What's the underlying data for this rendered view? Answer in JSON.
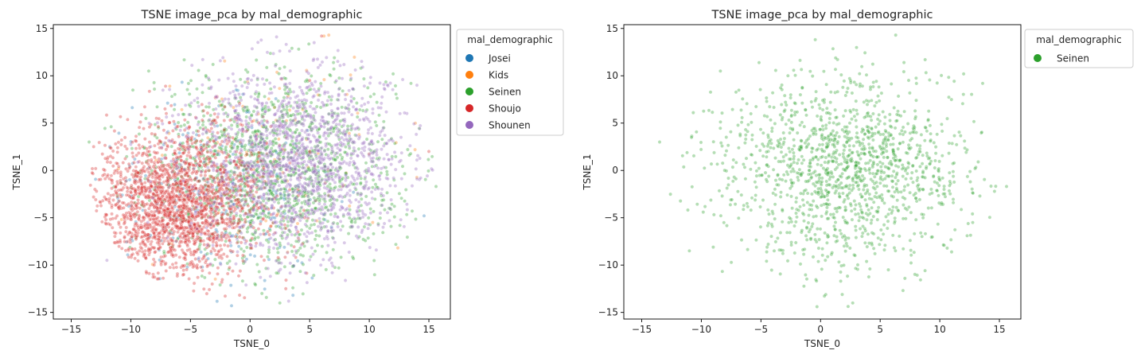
{
  "chart_data": [
    {
      "type": "scatter",
      "title": "TSNE image_pca by mal_demographic",
      "xlabel": "TSNE_0",
      "ylabel": "TSNE_1",
      "xlim": [
        -16.5,
        16.8
      ],
      "ylim": [
        -15.7,
        15.4
      ],
      "xticks": [
        -15,
        -10,
        -5,
        0,
        5,
        10,
        15
      ],
      "yticks": [
        -15,
        -10,
        -5,
        0,
        5,
        10,
        15
      ],
      "grid": false,
      "legend": {
        "title": "mal_demographic",
        "placement": "outside-upper-right",
        "entries": [
          {
            "name": "Josei",
            "color": "#1f77b4"
          },
          {
            "name": "Kids",
            "color": "#ff7f0e"
          },
          {
            "name": "Seinen",
            "color": "#2ca02c"
          },
          {
            "name": "Shoujo",
            "color": "#d62728"
          },
          {
            "name": "Shounen",
            "color": "#9467bd"
          }
        ]
      },
      "point_alpha": 0.35,
      "series": [
        {
          "name": "Josei",
          "color": "#1f77b4",
          "count": 260,
          "center": [
            -3.0,
            -3.0
          ],
          "spread": [
            5.0,
            4.5
          ],
          "points": [
            [
              14.6,
              -4.8
            ],
            [
              -5.5,
              -7.0
            ],
            [
              -4.0,
              -10.2
            ],
            [
              -6.2,
              -7.5
            ]
          ]
        },
        {
          "name": "Kids",
          "color": "#ff7f0e",
          "count": 120,
          "center": [
            2.0,
            1.5
          ],
          "spread": [
            5.5,
            5.0
          ],
          "points": [
            [
              6.2,
              14.2
            ],
            [
              6.6,
              14.3
            ]
          ]
        },
        {
          "name": "Seinen",
          "color": "#2ca02c",
          "count": 1400,
          "center": [
            2.0,
            0.0
          ],
          "spread": [
            5.2,
            5.0
          ],
          "points": [
            [
              15.6,
              -1.7
            ],
            [
              -13.5,
              3.0
            ],
            [
              12.0,
              10.2
            ],
            [
              7.0,
              11.4
            ],
            [
              1.0,
              -13.0
            ],
            [
              2.5,
              -14.0
            ],
            [
              13.5,
              9.2
            ],
            [
              -8.5,
              10.5
            ]
          ]
        },
        {
          "name": "Shoujo",
          "color": "#d62728",
          "count": 2000,
          "center": [
            -6.0,
            -3.5
          ],
          "spread": [
            3.6,
            3.8
          ],
          "points": [
            [
              6.0,
              14.2
            ],
            [
              5.0,
              9.5
            ],
            [
              15.0,
              2.0
            ],
            [
              3.0,
              -12.5
            ]
          ]
        },
        {
          "name": "Shounen",
          "color": "#9467bd",
          "count": 1500,
          "center": [
            4.0,
            1.0
          ],
          "spread": [
            4.5,
            5.0
          ],
          "points": [
            [
              12.8,
              9.6
            ],
            [
              14.0,
              9.0
            ],
            [
              -12.0,
              -9.5
            ],
            [
              8.0,
              7.5
            ]
          ]
        }
      ]
    },
    {
      "type": "scatter",
      "title": "TSNE image_pca by mal_demographic",
      "xlabel": "TSNE_0",
      "ylabel": "TSNE_1",
      "xlim": [
        -16.5,
        16.8
      ],
      "ylim": [
        -15.7,
        15.4
      ],
      "xticks": [
        -15,
        -10,
        -5,
        0,
        5,
        10,
        15
      ],
      "yticks": [
        -15,
        -10,
        -5,
        0,
        5,
        10,
        15
      ],
      "grid": false,
      "legend": {
        "title": "mal_demographic",
        "placement": "outside-upper-right",
        "entries": [
          {
            "name": "Seinen",
            "color": "#2ca02c"
          }
        ]
      },
      "point_alpha": 0.35,
      "series": [
        {
          "name": "Seinen",
          "color": "#2ca02c",
          "count": 1400,
          "center": [
            2.0,
            0.0
          ],
          "spread": [
            5.2,
            5.0
          ],
          "points": [
            [
              15.6,
              -1.7
            ],
            [
              -13.5,
              3.0
            ],
            [
              12.0,
              10.2
            ],
            [
              7.0,
              11.4
            ],
            [
              -0.3,
              -14.4
            ],
            [
              2.7,
              -14.0
            ],
            [
              6.3,
              14.3
            ],
            [
              -8.4,
              10.5
            ],
            [
              13.6,
              9.2
            ],
            [
              -11.0,
              -8.5
            ]
          ]
        }
      ]
    }
  ]
}
